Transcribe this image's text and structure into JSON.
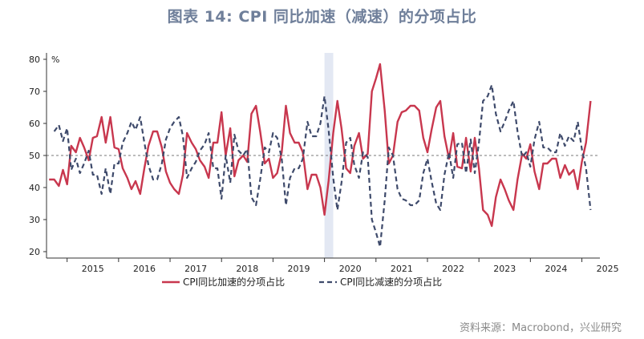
{
  "title": "图表 14: CPI 同比加速（减速）的分项占比",
  "source": "资料来源：Macrobond，兴业研究",
  "colors": {
    "accelerate": "#c8374e",
    "decelerate": "#3e4a6b",
    "shade": "#e3e8f3",
    "reference": "#7a7a7a"
  },
  "chart_data": {
    "type": "line",
    "unit": "%",
    "ylim": [
      18,
      82
    ],
    "yticks": [
      20,
      30,
      40,
      50,
      60,
      70,
      80
    ],
    "xlim": [
      2014.6,
      2025.35
    ],
    "year_labels": [
      "2015",
      "2016",
      "2017",
      "2018",
      "2019",
      "2020",
      "2021",
      "2022",
      "2023",
      "2024",
      "2025"
    ],
    "reference_line": 50,
    "shaded_period": [
      2020.0,
      2020.17
    ],
    "legend": [
      "CPI同比加速的分项占比",
      "CPI同比减速的分项占比"
    ],
    "series": [
      {
        "name": "CPI同比加速的分项占比",
        "style": "solid",
        "points": [
          [
            2014.65,
            42.5
          ],
          [
            2014.75,
            42.5
          ],
          [
            2014.84,
            40.5
          ],
          [
            2014.92,
            45.5
          ],
          [
            2015.0,
            41
          ],
          [
            2015.08,
            53
          ],
          [
            2015.17,
            51
          ],
          [
            2015.25,
            55.5
          ],
          [
            2015.33,
            52.5
          ],
          [
            2015.42,
            48.5
          ],
          [
            2015.5,
            55.5
          ],
          [
            2015.58,
            56
          ],
          [
            2015.67,
            62
          ],
          [
            2015.75,
            54
          ],
          [
            2015.84,
            62
          ],
          [
            2015.92,
            52.5
          ],
          [
            2016.0,
            52
          ],
          [
            2016.08,
            46
          ],
          [
            2016.17,
            43
          ],
          [
            2016.25,
            39.5
          ],
          [
            2016.33,
            42
          ],
          [
            2016.42,
            38
          ],
          [
            2016.5,
            46
          ],
          [
            2016.58,
            53
          ],
          [
            2016.67,
            57.5
          ],
          [
            2016.75,
            57.5
          ],
          [
            2016.84,
            52.5
          ],
          [
            2016.92,
            45
          ],
          [
            2017.0,
            41.5
          ],
          [
            2017.08,
            39.5
          ],
          [
            2017.17,
            38
          ],
          [
            2017.25,
            44
          ],
          [
            2017.33,
            57
          ],
          [
            2017.42,
            54
          ],
          [
            2017.5,
            52
          ],
          [
            2017.58,
            48.5
          ],
          [
            2017.67,
            46.5
          ],
          [
            2017.75,
            43
          ],
          [
            2017.84,
            54
          ],
          [
            2017.92,
            54
          ],
          [
            2018.0,
            63.5
          ],
          [
            2018.08,
            50
          ],
          [
            2018.17,
            58.5
          ],
          [
            2018.25,
            43.5
          ],
          [
            2018.33,
            48.5
          ],
          [
            2018.42,
            50
          ],
          [
            2018.5,
            48
          ],
          [
            2018.58,
            63
          ],
          [
            2018.67,
            65.5
          ],
          [
            2018.75,
            57.5
          ],
          [
            2018.84,
            47.5
          ],
          [
            2018.92,
            49
          ],
          [
            2019.0,
            43
          ],
          [
            2019.08,
            44.5
          ],
          [
            2019.17,
            51
          ],
          [
            2019.25,
            65.5
          ],
          [
            2019.33,
            57
          ],
          [
            2019.42,
            54
          ],
          [
            2019.5,
            54
          ],
          [
            2019.58,
            51
          ],
          [
            2019.67,
            39.5
          ],
          [
            2019.75,
            44
          ],
          [
            2019.84,
            44
          ],
          [
            2019.92,
            40
          ],
          [
            2020.0,
            31.5
          ],
          [
            2020.08,
            42
          ],
          [
            2020.17,
            57
          ],
          [
            2020.25,
            67
          ],
          [
            2020.33,
            58.5
          ],
          [
            2020.42,
            46
          ],
          [
            2020.5,
            44.5
          ],
          [
            2020.58,
            53
          ],
          [
            2020.67,
            57
          ],
          [
            2020.75,
            49
          ],
          [
            2020.84,
            50.5
          ],
          [
            2020.92,
            70
          ],
          [
            2021.0,
            74
          ],
          [
            2021.08,
            78.5
          ],
          [
            2021.17,
            64
          ],
          [
            2021.25,
            47.5
          ],
          [
            2021.33,
            50
          ],
          [
            2021.42,
            60.5
          ],
          [
            2021.5,
            63.5
          ],
          [
            2021.58,
            64
          ],
          [
            2021.67,
            65.5
          ],
          [
            2021.75,
            65.5
          ],
          [
            2021.84,
            64
          ],
          [
            2021.92,
            55.5
          ],
          [
            2022.0,
            51
          ],
          [
            2022.08,
            58
          ],
          [
            2022.17,
            65
          ],
          [
            2022.25,
            67
          ],
          [
            2022.33,
            56
          ],
          [
            2022.42,
            49
          ],
          [
            2022.5,
            57
          ],
          [
            2022.58,
            46.5
          ],
          [
            2022.67,
            46
          ],
          [
            2022.75,
            55.5
          ],
          [
            2022.84,
            45
          ],
          [
            2022.92,
            55.5
          ],
          [
            2023.0,
            46
          ],
          [
            2023.08,
            33
          ],
          [
            2023.17,
            31.5
          ],
          [
            2023.25,
            28
          ],
          [
            2023.33,
            37
          ],
          [
            2023.42,
            42.5
          ],
          [
            2023.5,
            39.5
          ],
          [
            2023.58,
            36
          ],
          [
            2023.67,
            33
          ],
          [
            2023.75,
            42.5
          ],
          [
            2023.84,
            50.5
          ],
          [
            2023.92,
            49
          ],
          [
            2024.0,
            53.5
          ],
          [
            2024.08,
            45
          ],
          [
            2024.17,
            39.5
          ],
          [
            2024.25,
            47.5
          ],
          [
            2024.33,
            47.5
          ],
          [
            2024.42,
            49
          ],
          [
            2024.5,
            49
          ],
          [
            2024.58,
            43
          ],
          [
            2024.67,
            47
          ],
          [
            2024.75,
            44
          ],
          [
            2024.84,
            45.5
          ],
          [
            2024.92,
            39.5
          ],
          [
            2025.0,
            48
          ],
          [
            2025.08,
            54
          ],
          [
            2025.17,
            67
          ]
        ]
      },
      {
        "name": "CPI同比减速的分项占比",
        "style": "dashed",
        "points": [
          [
            2014.75,
            57.5
          ],
          [
            2014.84,
            59.5
          ],
          [
            2014.92,
            54.5
          ],
          [
            2015.0,
            58.5
          ],
          [
            2015.08,
            45.5
          ],
          [
            2015.17,
            49
          ],
          [
            2015.25,
            44.5
          ],
          [
            2015.33,
            47.5
          ],
          [
            2015.42,
            51.5
          ],
          [
            2015.5,
            44
          ],
          [
            2015.58,
            44
          ],
          [
            2015.67,
            38
          ],
          [
            2015.75,
            46
          ],
          [
            2015.84,
            38
          ],
          [
            2015.92,
            47.5
          ],
          [
            2016.0,
            47.5
          ],
          [
            2016.08,
            54
          ],
          [
            2016.17,
            57
          ],
          [
            2016.25,
            60.5
          ],
          [
            2016.33,
            58
          ],
          [
            2016.42,
            62
          ],
          [
            2016.5,
            54
          ],
          [
            2016.58,
            47
          ],
          [
            2016.67,
            42.5
          ],
          [
            2016.75,
            42.5
          ],
          [
            2016.84,
            47.5
          ],
          [
            2016.92,
            55
          ],
          [
            2017.0,
            58.5
          ],
          [
            2017.08,
            60.5
          ],
          [
            2017.17,
            62
          ],
          [
            2017.25,
            56
          ],
          [
            2017.33,
            43
          ],
          [
            2017.42,
            46
          ],
          [
            2017.5,
            48
          ],
          [
            2017.58,
            51.5
          ],
          [
            2017.67,
            53.5
          ],
          [
            2017.75,
            57
          ],
          [
            2017.84,
            46
          ],
          [
            2017.92,
            46
          ],
          [
            2018.0,
            36.5
          ],
          [
            2018.08,
            50
          ],
          [
            2018.17,
            41.5
          ],
          [
            2018.25,
            56.5
          ],
          [
            2018.33,
            51.5
          ],
          [
            2018.42,
            50
          ],
          [
            2018.5,
            52
          ],
          [
            2018.58,
            37
          ],
          [
            2018.67,
            34.5
          ],
          [
            2018.75,
            42.5
          ],
          [
            2018.84,
            52.5
          ],
          [
            2018.92,
            51
          ],
          [
            2019.0,
            57
          ],
          [
            2019.08,
            55.5
          ],
          [
            2019.17,
            49
          ],
          [
            2019.25,
            34.5
          ],
          [
            2019.33,
            43
          ],
          [
            2019.42,
            46
          ],
          [
            2019.5,
            46
          ],
          [
            2019.58,
            49
          ],
          [
            2019.67,
            60.5
          ],
          [
            2019.75,
            56
          ],
          [
            2019.84,
            56
          ],
          [
            2019.92,
            60
          ],
          [
            2020.0,
            68.5
          ],
          [
            2020.08,
            58
          ],
          [
            2020.17,
            43
          ],
          [
            2020.25,
            33
          ],
          [
            2020.33,
            41.5
          ],
          [
            2020.42,
            54
          ],
          [
            2020.5,
            55.5
          ],
          [
            2020.58,
            47
          ],
          [
            2020.67,
            43
          ],
          [
            2020.75,
            51
          ],
          [
            2020.84,
            49.5
          ],
          [
            2020.92,
            30
          ],
          [
            2021.0,
            26
          ],
          [
            2021.08,
            21.5
          ],
          [
            2021.17,
            36
          ],
          [
            2021.25,
            52.5
          ],
          [
            2021.33,
            50
          ],
          [
            2021.42,
            39.5
          ],
          [
            2021.5,
            36.5
          ],
          [
            2021.58,
            36
          ],
          [
            2021.67,
            34.5
          ],
          [
            2021.75,
            34.5
          ],
          [
            2021.84,
            36
          ],
          [
            2021.92,
            44.5
          ],
          [
            2022.0,
            49
          ],
          [
            2022.08,
            42
          ],
          [
            2022.17,
            35
          ],
          [
            2022.25,
            33
          ],
          [
            2022.33,
            44
          ],
          [
            2022.42,
            51
          ],
          [
            2022.5,
            43
          ],
          [
            2022.58,
            53.5
          ],
          [
            2022.67,
            54
          ],
          [
            2022.75,
            44.5
          ],
          [
            2022.84,
            55
          ],
          [
            2022.92,
            44.5
          ],
          [
            2023.0,
            54
          ],
          [
            2023.08,
            67
          ],
          [
            2023.17,
            68.5
          ],
          [
            2023.25,
            72
          ],
          [
            2023.33,
            63
          ],
          [
            2023.42,
            57.5
          ],
          [
            2023.5,
            60.5
          ],
          [
            2023.58,
            64
          ],
          [
            2023.67,
            67
          ],
          [
            2023.75,
            57.5
          ],
          [
            2023.84,
            49.5
          ],
          [
            2023.92,
            51
          ],
          [
            2024.0,
            46.5
          ],
          [
            2024.08,
            55
          ],
          [
            2024.17,
            60.5
          ],
          [
            2024.25,
            52.5
          ],
          [
            2024.33,
            52.5
          ],
          [
            2024.42,
            51
          ],
          [
            2024.5,
            51
          ],
          [
            2024.58,
            57
          ],
          [
            2024.67,
            53
          ],
          [
            2024.75,
            56
          ],
          [
            2024.84,
            54.5
          ],
          [
            2024.92,
            60.5
          ],
          [
            2025.0,
            52
          ],
          [
            2025.08,
            46
          ],
          [
            2025.17,
            33
          ]
        ]
      }
    ]
  }
}
